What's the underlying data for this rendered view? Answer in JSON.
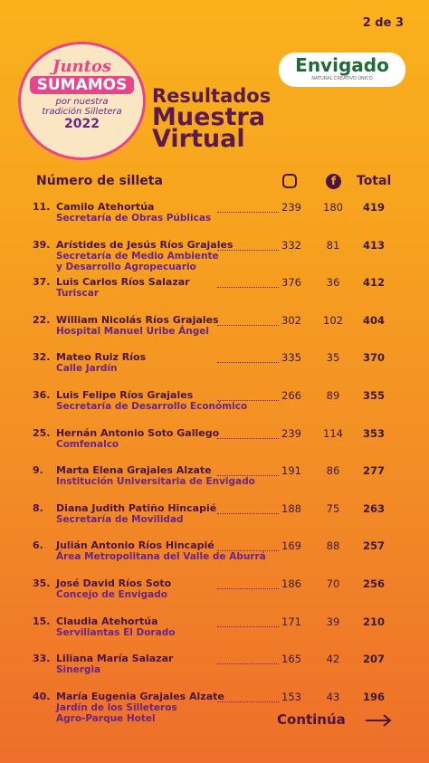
{
  "page_indicator": "2 de 3",
  "badge": {
    "line1": "Juntos",
    "line2": "SUMAMOS",
    "line3": "por nuestra",
    "line4": "tradición Silletera",
    "year": "2022"
  },
  "brand": {
    "name": "Envigado",
    "tagline": "NATURAL CREATIVO ÚNICO"
  },
  "title": {
    "line1": "Resultados",
    "line2": "Muestra",
    "line3": "Virtual"
  },
  "table": {
    "header": {
      "name": "Número de silleta",
      "total": "Total"
    },
    "rows": [
      {
        "number": "11.",
        "name": "Camilo Atehortúa",
        "org": [
          "Secretaría de  Obras Públicas"
        ],
        "instagram": 239,
        "facebook": 180,
        "total": 419
      },
      {
        "number": "39.",
        "name": "Arístides de Jesús Ríos Grajales",
        "org": [
          "Secretaría de Medio Ambiente",
          "y Desarrollo Agropecuario"
        ],
        "instagram": 332,
        "facebook": 81,
        "total": 413
      },
      {
        "number": "37.",
        "name": "Luis Carlos Ríos Salazar",
        "org": [
          "Turiscar"
        ],
        "instagram": 376,
        "facebook": 36,
        "total": 412
      },
      {
        "number": "22.",
        "name": "William Nicolás Ríos Grajales",
        "org": [
          "Hospital Manuel Uribe Ángel"
        ],
        "instagram": 302,
        "facebook": 102,
        "total": 404
      },
      {
        "number": "32.",
        "name": "Mateo Ruiz Ríos",
        "org": [
          "Calle Jardín"
        ],
        "instagram": 335,
        "facebook": 35,
        "total": 370
      },
      {
        "number": "36.",
        "name": "Luis Felipe Ríos Grajales",
        "org": [
          "Secretaría de Desarrollo Económico"
        ],
        "instagram": 266,
        "facebook": 89,
        "total": 355
      },
      {
        "number": "25.",
        "name": "Hernán Antonio Soto Gallego",
        "org": [
          "Comfenalco"
        ],
        "instagram": 239,
        "facebook": 114,
        "total": 353
      },
      {
        "number": "9.",
        "name": "Marta Elena Grajales Alzate",
        "org": [
          "Institución Universitaria de Envigado"
        ],
        "instagram": 191,
        "facebook": 86,
        "total": 277
      },
      {
        "number": "8.",
        "name": "Diana Judith Patiño Hincapié",
        "org": [
          "Secretaría de Movilidad"
        ],
        "instagram": 188,
        "facebook": 75,
        "total": 263
      },
      {
        "number": "6.",
        "name": "Julián Antonio Ríos Hincapié",
        "org": [
          "Área Metropolitana del Valle de Aburrá"
        ],
        "instagram": 169,
        "facebook": 88,
        "total": 257
      },
      {
        "number": "35.",
        "name": "José David Ríos Soto",
        "org": [
          "Concejo de Envigado"
        ],
        "instagram": 186,
        "facebook": 70,
        "total": 256
      },
      {
        "number": "15.",
        "name": "Claudia Atehortúa",
        "org": [
          "Servillantas El Dorado"
        ],
        "instagram": 171,
        "facebook": 39,
        "total": 210
      },
      {
        "number": "33.",
        "name": "Liliana María Salazar",
        "org": [
          "Sinergia"
        ],
        "instagram": 165,
        "facebook": 42,
        "total": 207
      },
      {
        "number": "40.",
        "name": "María Eugenia Grajales Alzate",
        "org": [
          "Jardín de los Silleteros",
          "Agro-Parque Hotel"
        ],
        "instagram": 153,
        "facebook": 43,
        "total": 196
      }
    ]
  },
  "footer": {
    "continue": "Continúa"
  }
}
